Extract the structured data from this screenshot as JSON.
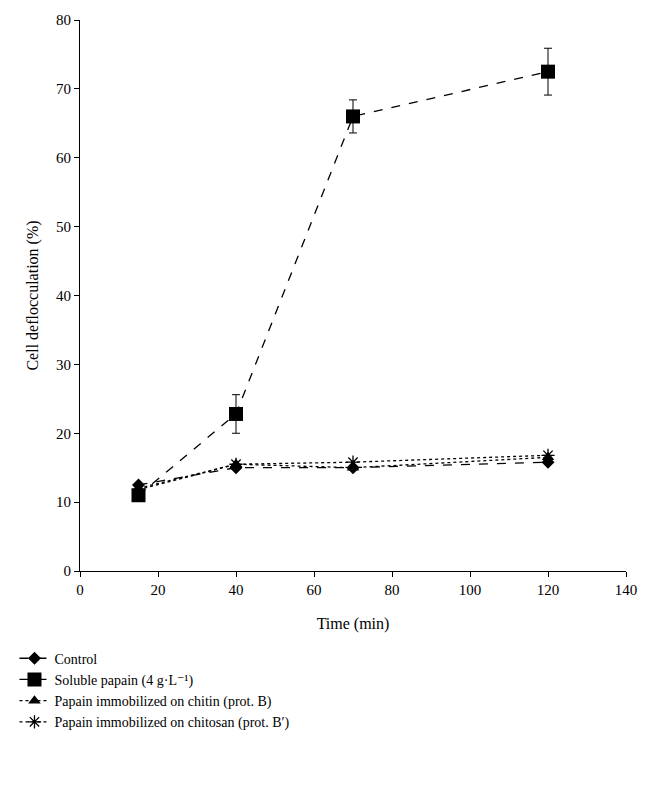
{
  "chart_data": {
    "type": "line",
    "x_label": "Time (min)",
    "y_label": "Cell deflocculation (%)",
    "xlim": [
      0,
      140
    ],
    "xticks": [
      0,
      20,
      40,
      60,
      80,
      100,
      120,
      140
    ],
    "ylim": [
      0,
      80
    ],
    "yticks": [
      0,
      10,
      20,
      30,
      40,
      50,
      60,
      70,
      80
    ],
    "grid": false,
    "legend": "bottom",
    "x": [
      15,
      40,
      70,
      120
    ],
    "series": [
      {
        "name": "Control",
        "color": "#000000",
        "marker": "diamond",
        "line_style": "dashed",
        "values": [
          12.5,
          15.0,
          15.0,
          15.8
        ]
      },
      {
        "name": "Soluble papain (4 g·L⁻¹)",
        "color": "#000000",
        "marker": "square",
        "line_style": "dashed",
        "values": [
          11.0,
          22.8,
          66.0,
          72.5
        ],
        "errors": [
          0.8,
          2.8,
          2.4,
          3.4
        ]
      },
      {
        "name": "Papain immobilized on chitin (prot. B)",
        "color": "#000000",
        "marker": "triangle",
        "line_style": "dotted",
        "values": [
          12.0,
          15.5,
          15.0,
          16.5
        ]
      },
      {
        "name": "Papain immobilized on chitosan (prot. B′)",
        "color": "#000000",
        "marker": "asterisk",
        "line_style": "dotted",
        "values": [
          11.8,
          15.5,
          15.8,
          16.8
        ]
      }
    ]
  }
}
